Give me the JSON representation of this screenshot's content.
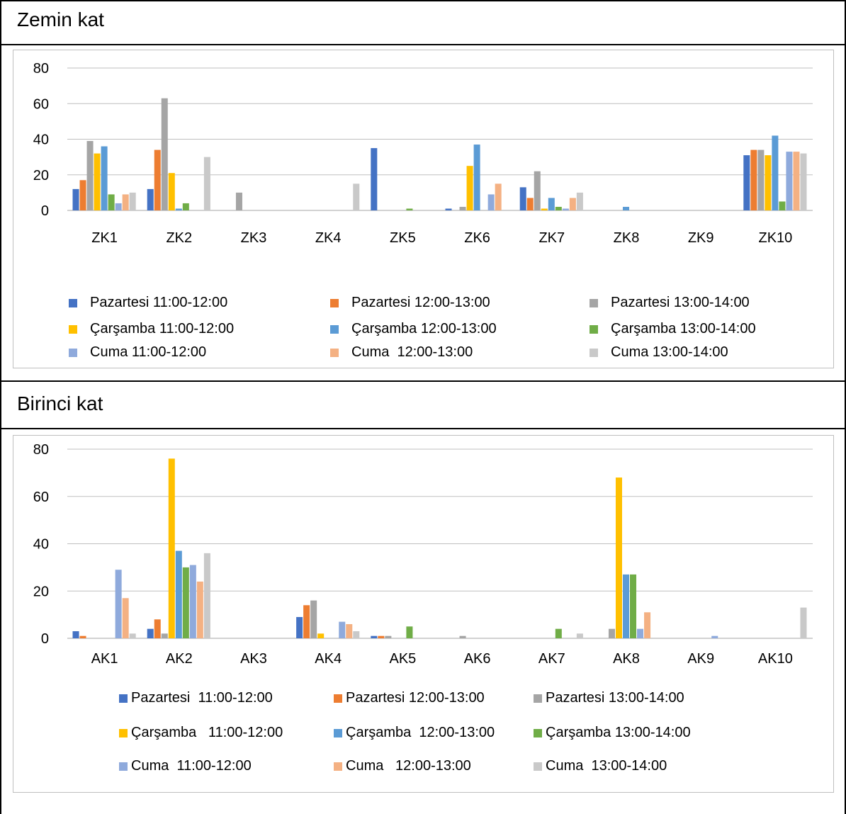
{
  "sections": [
    {
      "title": "Zemin kat"
    },
    {
      "title": "Birinci kat"
    }
  ],
  "colors": [
    "#4472C4",
    "#ED7D31",
    "#A5A5A5",
    "#FFC000",
    "#5B9BD5",
    "#70AD47",
    "#8FAADC",
    "#F4B183",
    "#C9C9C9"
  ],
  "chart_data": [
    {
      "type": "bar",
      "title": "",
      "xlabel": "",
      "ylabel": "",
      "ylim": [
        0,
        80
      ],
      "yticks": [
        0,
        20,
        40,
        60,
        80
      ],
      "grid": true,
      "legend_position": "bottom",
      "categories": [
        "ZK1",
        "ZK2",
        "ZK3",
        "ZK4",
        "ZK5",
        "ZK6",
        "ZK7",
        "ZK8",
        "ZK9",
        "ZK10"
      ],
      "series": [
        {
          "name": "Pazartesi 11:00-12:00",
          "legend_label": "Pazartesi 11:00-12:00",
          "values": [
            12,
            12,
            0,
            0,
            35,
            1,
            13,
            0,
            0,
            31
          ]
        },
        {
          "name": "Pazartesi 12:00-13:00",
          "legend_label": "Pazartesi 12:00-13:00",
          "values": [
            17,
            34,
            0,
            0,
            0,
            0,
            7,
            0,
            0,
            34
          ]
        },
        {
          "name": "Pazartesi 13:00-14:00",
          "legend_label": "Pazartesi 13:00-14:00",
          "values": [
            39,
            63,
            10,
            0,
            0,
            2,
            22,
            0,
            0,
            34
          ]
        },
        {
          "name": "Çarşamba 11:00-12:00",
          "legend_label": "Çarşamba 11:00-12:00",
          "values": [
            32,
            21,
            0,
            0,
            0,
            25,
            1,
            0,
            0,
            31
          ]
        },
        {
          "name": "Çarşamba 12:00-13:00",
          "legend_label": "Çarşamba 12:00-13:00",
          "values": [
            36,
            1,
            0,
            0,
            0,
            37,
            7,
            2,
            0,
            42
          ]
        },
        {
          "name": "Çarşamba 13:00-14:00",
          "legend_label": "Çarşamba 13:00-14:00",
          "values": [
            9,
            4,
            0,
            0,
            1,
            0,
            2,
            0,
            0,
            5
          ]
        },
        {
          "name": "Cuma 11:00-12:00",
          "legend_label": "Cuma 11:00-12:00",
          "values": [
            4,
            0,
            0,
            0,
            0,
            9,
            1,
            0,
            0,
            33
          ]
        },
        {
          "name": "Cuma 12:00-13:00",
          "legend_label": "Cuma  12:00-13:00",
          "values": [
            9,
            0,
            0,
            0,
            0,
            15,
            7,
            0,
            0,
            33
          ]
        },
        {
          "name": "Cuma 13:00-14:00",
          "legend_label": "Cuma 13:00-14:00",
          "values": [
            10,
            30,
            0,
            15,
            0,
            0,
            10,
            0,
            0,
            32
          ]
        }
      ]
    },
    {
      "type": "bar",
      "title": "",
      "xlabel": "",
      "ylabel": "",
      "ylim": [
        0,
        80
      ],
      "yticks": [
        0,
        20,
        40,
        60,
        80
      ],
      "grid": true,
      "legend_position": "bottom",
      "categories": [
        "AK1",
        "AK2",
        "AK3",
        "AK4",
        "AK5",
        "AK6",
        "AK7",
        "AK8",
        "AK9",
        "AK10"
      ],
      "series": [
        {
          "name": "Pazartesi 11:00-12:00",
          "legend_label": "Pazartesi  11:00-12:00",
          "values": [
            3,
            4,
            0,
            9,
            1,
            0,
            0,
            0,
            0,
            0
          ]
        },
        {
          "name": "Pazartesi 12:00-13:00",
          "legend_label": "Pazartesi 12:00-13:00",
          "values": [
            1,
            8,
            0,
            14,
            1,
            0,
            0,
            0,
            0,
            0
          ]
        },
        {
          "name": "Pazartesi 13:00-14:00",
          "legend_label": "Pazartesi 13:00-14:00",
          "values": [
            0,
            2,
            0,
            16,
            1,
            1,
            0,
            4,
            0,
            0
          ]
        },
        {
          "name": "Çarşamba 11:00-12:00",
          "legend_label": "Çarşamba   11:00-12:00",
          "values": [
            0,
            76,
            0,
            2,
            0,
            0,
            0,
            68,
            0,
            0
          ]
        },
        {
          "name": "Çarşamba 12:00-13:00",
          "legend_label": "Çarşamba  12:00-13:00",
          "values": [
            0,
            37,
            0,
            0,
            0,
            0,
            0,
            27,
            0,
            0
          ]
        },
        {
          "name": "Çarşamba 13:00-14:00",
          "legend_label": "Çarşamba 13:00-14:00",
          "values": [
            0,
            30,
            0,
            0,
            5,
            0,
            4,
            27,
            0,
            0
          ]
        },
        {
          "name": "Cuma 11:00-12:00",
          "legend_label": "Cuma  11:00-12:00",
          "values": [
            29,
            31,
            0,
            7,
            0,
            0,
            0,
            4,
            1,
            0
          ]
        },
        {
          "name": "Cuma 12:00-13:00",
          "legend_label": "Cuma   12:00-13:00",
          "values": [
            17,
            24,
            0,
            6,
            0,
            0,
            0,
            11,
            0,
            0
          ]
        },
        {
          "name": "Cuma 13:00-14:00",
          "legend_label": "Cuma  13:00-14:00",
          "values": [
            2,
            36,
            0,
            3,
            0,
            0,
            2,
            0,
            0,
            13
          ]
        }
      ]
    }
  ]
}
